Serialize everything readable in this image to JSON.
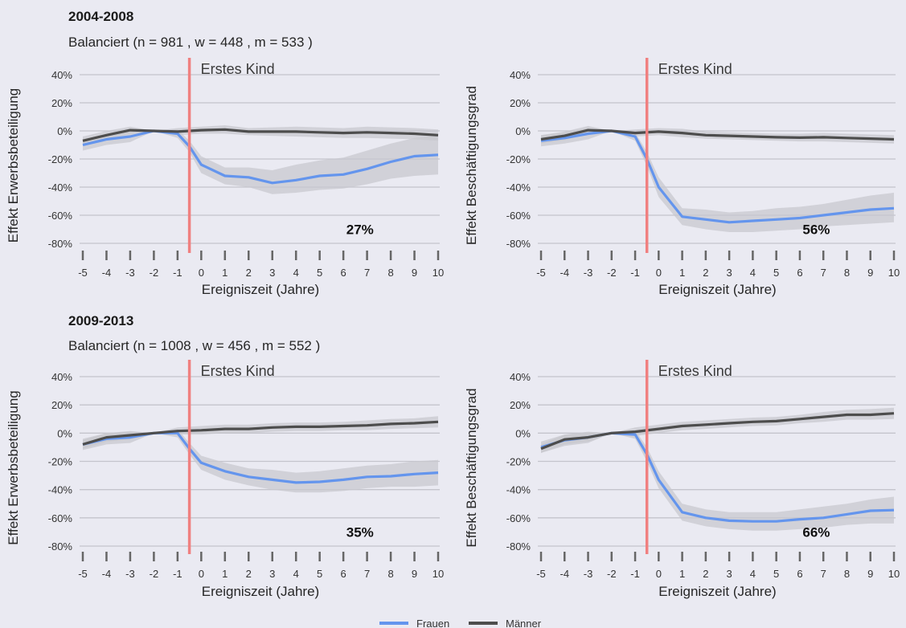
{
  "sections": [
    {
      "title": "2004-2008",
      "subtitle": "Balanciert  (n = 981 , w = 448 , m = 533 )"
    },
    {
      "title": "2009-2013",
      "subtitle": "Balanciert  (n = 1008 , w = 456 , m = 552 )"
    }
  ],
  "legend": [
    {
      "label": "Frauen",
      "color": "#6495ed"
    },
    {
      "label": "Männer",
      "color": "#4d4d4d"
    }
  ],
  "colors": {
    "background": "#eaeaf2",
    "frauen": "#6495ed",
    "maenner": "#4d4d4d",
    "event_line": "#f08080",
    "ci_band": "#c8c8cf",
    "gridline": "#c4c4cc"
  },
  "chart_data": [
    {
      "type": "line",
      "ylabel": "Effekt  Erwerbsbeteiligung",
      "xlabel": "Ereigniszeit (Jahre)",
      "event_label": "Erstes Kind",
      "event_x": -0.5,
      "annotation": "27%",
      "x": [
        -5,
        -4,
        -3,
        -2,
        -1,
        0,
        1,
        2,
        3,
        4,
        5,
        6,
        7,
        8,
        9,
        10
      ],
      "x_tick_labels": [
        "-5",
        "-4",
        "-3",
        "-2",
        "-1",
        "0",
        "1",
        "2",
        "3",
        "4",
        "5",
        "6",
        "7",
        "8",
        "9",
        "10"
      ],
      "ylim": [
        -80,
        50
      ],
      "y_ticks": [
        -80,
        -60,
        -40,
        -20,
        0,
        20,
        40
      ],
      "y_tick_labels": [
        "-80%",
        "-60%",
        "-40%",
        "-20%",
        "0%",
        "20%",
        "40%"
      ],
      "grid": true,
      "series": [
        {
          "name": "Frauen",
          "x": [
            -5,
            -4,
            -3,
            -2,
            -1,
            -0.5,
            0,
            1,
            2,
            3,
            4,
            5,
            6,
            7,
            8,
            9,
            10
          ],
          "values": [
            -10,
            -6,
            -4,
            0,
            -2,
            -11,
            -24,
            -32,
            -33,
            -37,
            -35,
            -32,
            -31,
            -27,
            -22,
            -18,
            -17
          ],
          "lower": [
            -14,
            -10,
            -8,
            0,
            -5,
            -15,
            -30,
            -38,
            -40,
            -45,
            -44,
            -42,
            -41,
            -38,
            -34,
            -32,
            -31
          ],
          "upper": [
            -6,
            -2,
            0,
            0,
            1,
            -7,
            -18,
            -26,
            -26,
            -28,
            -24,
            -21,
            -19,
            -14,
            -9,
            -5,
            -3
          ]
        },
        {
          "name": "Männer",
          "x": [
            -5,
            -4,
            -3,
            -2,
            -1,
            0,
            1,
            2,
            3,
            4,
            5,
            6,
            7,
            8,
            9,
            10
          ],
          "values": [
            -7,
            -3,
            0.5,
            0,
            -0.5,
            0.5,
            1,
            -0.5,
            -0.5,
            -0.5,
            -1,
            -1.5,
            -1,
            -1.5,
            -2,
            -3
          ],
          "lower": [
            -10,
            -6,
            -2,
            0,
            -3,
            -2,
            -2,
            -3,
            -3.5,
            -4,
            -4.5,
            -5,
            -5,
            -5.5,
            -6,
            -7
          ],
          "upper": [
            -4,
            0,
            3,
            0,
            2,
            3,
            4,
            2,
            2.5,
            3,
            2.5,
            2,
            3,
            2.5,
            2,
            1
          ]
        }
      ]
    },
    {
      "type": "line",
      "ylabel": "Effekt  Beschäftigungsgrad",
      "xlabel": "Ereigniszeit (Jahre)",
      "event_label": "Erstes Kind",
      "event_x": -0.5,
      "annotation": "56%",
      "x": [
        -5,
        -4,
        -3,
        -2,
        -1,
        0,
        1,
        2,
        3,
        4,
        5,
        6,
        7,
        8,
        9,
        10
      ],
      "x_tick_labels": [
        "-5",
        "-4",
        "-3",
        "-2",
        "-1",
        "0",
        "1",
        "2",
        "3",
        "4",
        "5",
        "6",
        "7",
        "8",
        "9",
        "10"
      ],
      "ylim": [
        -80,
        50
      ],
      "y_ticks": [
        -80,
        -60,
        -40,
        -20,
        0,
        20,
        40
      ],
      "y_tick_labels": [
        "-80%",
        "-60%",
        "-40%",
        "-20%",
        "0%",
        "20%",
        "40%"
      ],
      "grid": true,
      "series": [
        {
          "name": "Frauen",
          "x": [
            -5,
            -4,
            -3,
            -2,
            -1,
            -0.5,
            0,
            1,
            2,
            3,
            4,
            5,
            6,
            7,
            8,
            9,
            10
          ],
          "values": [
            -7,
            -5,
            -2,
            0,
            -4,
            -20,
            -40,
            -61,
            -63,
            -65,
            -64,
            -63,
            -62,
            -60,
            -58,
            -56,
            -55
          ],
          "lower": [
            -11,
            -9,
            -6,
            0,
            -7,
            -25,
            -47,
            -67,
            -70,
            -72,
            -72,
            -71,
            -70,
            -68,
            -67,
            -66,
            -65
          ],
          "upper": [
            -3,
            -1,
            2,
            0,
            -1,
            -15,
            -33,
            -55,
            -56,
            -58,
            -57,
            -55,
            -54,
            -52,
            -49,
            -46,
            -44
          ]
        },
        {
          "name": "Männer",
          "x": [
            -5,
            -4,
            -3,
            -2,
            -1,
            0,
            1,
            2,
            3,
            4,
            5,
            6,
            7,
            8,
            9,
            10
          ],
          "values": [
            -6,
            -3.5,
            0.5,
            0,
            -1.5,
            -0.5,
            -1.5,
            -3,
            -3.5,
            -4,
            -4.5,
            -4.8,
            -4.5,
            -5,
            -5.5,
            -6
          ],
          "lower": [
            -9,
            -6.5,
            -2.5,
            0,
            -4,
            -3,
            -4.5,
            -5.5,
            -6,
            -6.5,
            -7,
            -7.5,
            -7.5,
            -8,
            -8.5,
            -9
          ],
          "upper": [
            -3,
            -0.5,
            3.5,
            0,
            1,
            2,
            1.5,
            -0.5,
            -1,
            -1.5,
            -2,
            -2,
            -1.5,
            -2,
            -2.5,
            -3
          ]
        }
      ]
    },
    {
      "type": "line",
      "ylabel": "Effekt  Erwerbsbeteiligung",
      "xlabel": "Ereigniszeit (Jahre)",
      "event_label": "Erstes Kind",
      "event_x": -0.5,
      "annotation": "35%",
      "x": [
        -5,
        -4,
        -3,
        -2,
        -1,
        0,
        1,
        2,
        3,
        4,
        5,
        6,
        7,
        8,
        9,
        10
      ],
      "x_tick_labels": [
        "-5",
        "-4",
        "-3",
        "-2",
        "-1",
        "0",
        "1",
        "2",
        "3",
        "4",
        "5",
        "6",
        "7",
        "8",
        "9",
        "10"
      ],
      "ylim": [
        -80,
        50
      ],
      "y_ticks": [
        -80,
        -60,
        -40,
        -20,
        0,
        20,
        40
      ],
      "y_tick_labels": [
        "-80%",
        "-60%",
        "-40%",
        "-20%",
        "0%",
        "20%",
        "40%"
      ],
      "grid": true,
      "series": [
        {
          "name": "Frauen",
          "x": [
            -5,
            -4,
            -3,
            -2,
            -1,
            -0.5,
            0,
            1,
            2,
            3,
            4,
            5,
            6,
            7,
            8,
            9,
            10
          ],
          "values": [
            -8,
            -4,
            -3,
            0,
            0,
            -11,
            -21,
            -27,
            -31,
            -33,
            -35,
            -34.5,
            -33,
            -31,
            -30.5,
            -29,
            -28
          ],
          "lower": [
            -12,
            -8,
            -7,
            0,
            -3,
            -15,
            -26,
            -33,
            -37,
            -40,
            -42,
            -42,
            -41,
            -39,
            -38,
            -38,
            -37
          ],
          "upper": [
            -4,
            0,
            1,
            0,
            3,
            -7,
            -16,
            -21,
            -25,
            -26,
            -28,
            -27,
            -25,
            -23,
            -22,
            -20,
            -19
          ]
        },
        {
          "name": "Männer",
          "x": [
            -5,
            -4,
            -3,
            -2,
            -1,
            0,
            1,
            2,
            3,
            4,
            5,
            6,
            7,
            8,
            9,
            10
          ],
          "values": [
            -8,
            -3,
            -1.5,
            0,
            1.5,
            2,
            3,
            3,
            4,
            4.5,
            4.5,
            5,
            5.5,
            6.5,
            7,
            8
          ],
          "lower": [
            -11,
            -6,
            -4.5,
            0,
            -1,
            -1,
            0,
            0,
            1,
            1.5,
            1.5,
            2,
            2,
            3,
            3.5,
            4
          ],
          "upper": [
            -5,
            0,
            1.5,
            0,
            4,
            5,
            6,
            6,
            7,
            7.5,
            7.5,
            8,
            9,
            10,
            10.5,
            12
          ]
        }
      ]
    },
    {
      "type": "line",
      "ylabel": "Effekt  Beschäftigungsgrad",
      "xlabel": "Ereigniszeit (Jahre)",
      "event_label": "Erstes Kind",
      "event_x": -0.5,
      "annotation": "66%",
      "x": [
        -5,
        -4,
        -3,
        -2,
        -1,
        0,
        1,
        2,
        3,
        4,
        5,
        6,
        7,
        8,
        9,
        10
      ],
      "x_tick_labels": [
        "-5",
        "-4",
        "-3",
        "-2",
        "-1",
        "0",
        "1",
        "2",
        "3",
        "4",
        "5",
        "6",
        "7",
        "8",
        "9",
        "10"
      ],
      "ylim": [
        -80,
        50
      ],
      "y_ticks": [
        -80,
        -60,
        -40,
        -20,
        0,
        20,
        40
      ],
      "y_tick_labels": [
        "-80%",
        "-60%",
        "-40%",
        "-20%",
        "0%",
        "20%",
        "40%"
      ],
      "grid": true,
      "series": [
        {
          "name": "Frauen",
          "x": [
            -5,
            -4,
            -3,
            -2,
            -1,
            -0.5,
            0,
            1,
            2,
            3,
            4,
            5,
            6,
            7,
            8,
            9,
            10
          ],
          "values": [
            -10,
            -5,
            -3,
            0,
            -1,
            -15,
            -33,
            -56,
            -60,
            -62,
            -62.5,
            -62.5,
            -61,
            -60,
            -57.5,
            -55,
            -54.5
          ],
          "lower": [
            -14,
            -9,
            -7,
            0,
            -4,
            -20,
            -39,
            -62,
            -66,
            -68,
            -69,
            -69,
            -68,
            -67,
            -65,
            -64,
            -64
          ],
          "upper": [
            -6,
            -1,
            1,
            0,
            2,
            -10,
            -27,
            -50,
            -54,
            -56,
            -56,
            -56,
            -54,
            -52,
            -50,
            -47,
            -45
          ]
        },
        {
          "name": "Männer",
          "x": [
            -5,
            -4,
            -3,
            -2,
            -1,
            0,
            1,
            2,
            3,
            4,
            5,
            6,
            7,
            8,
            9,
            10
          ],
          "values": [
            -11,
            -4.5,
            -3,
            0,
            1,
            3,
            5,
            6,
            7,
            8,
            8.5,
            10,
            11.5,
            13,
            13,
            14
          ],
          "lower": [
            -14,
            -8,
            -6,
            0,
            -2,
            0,
            2,
            3,
            4,
            5,
            5.5,
            7,
            8,
            9.5,
            9.5,
            10
          ],
          "upper": [
            -8,
            -1,
            0,
            0,
            4,
            6,
            8,
            9,
            10,
            11,
            11.5,
            13,
            15,
            16.5,
            17,
            18
          ]
        }
      ]
    }
  ]
}
